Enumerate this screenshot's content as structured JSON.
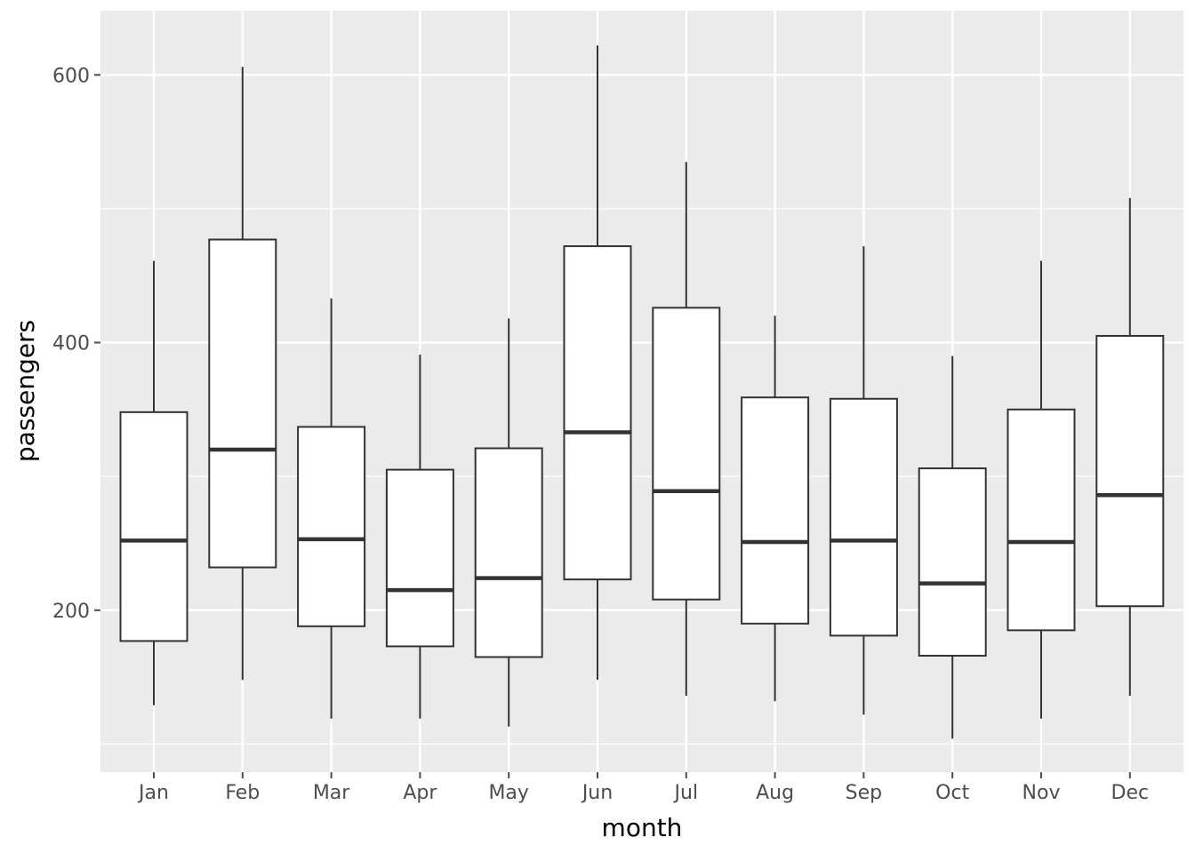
{
  "chart_data": {
    "type": "boxplot",
    "xlabel": "month",
    "ylabel": "passengers",
    "categories": [
      "Jan",
      "Feb",
      "Mar",
      "Apr",
      "May",
      "Jun",
      "Jul",
      "Aug",
      "Sep",
      "Oct",
      "Nov",
      "Dec"
    ],
    "boxes": [
      {
        "category": "Jan",
        "low": 129,
        "q1": 177,
        "median": 252,
        "q3": 348,
        "high": 461
      },
      {
        "category": "Feb",
        "low": 148,
        "q1": 232,
        "median": 320,
        "q3": 477,
        "high": 606
      },
      {
        "category": "Mar",
        "low": 119,
        "q1": 188,
        "median": 253,
        "q3": 337,
        "high": 433
      },
      {
        "category": "Apr",
        "low": 119,
        "q1": 173,
        "median": 215,
        "q3": 305,
        "high": 391
      },
      {
        "category": "May",
        "low": 113,
        "q1": 165,
        "median": 224,
        "q3": 321,
        "high": 418
      },
      {
        "category": "Jun",
        "low": 148,
        "q1": 223,
        "median": 333,
        "q3": 472,
        "high": 622
      },
      {
        "category": "Jul",
        "low": 136,
        "q1": 208,
        "median": 289,
        "q3": 426,
        "high": 535
      },
      {
        "category": "Aug",
        "low": 132,
        "q1": 190,
        "median": 251,
        "q3": 359,
        "high": 420
      },
      {
        "category": "Sep",
        "low": 122,
        "q1": 181,
        "median": 252,
        "q3": 358,
        "high": 472
      },
      {
        "category": "Oct",
        "low": 104,
        "q1": 166,
        "median": 220,
        "q3": 306,
        "high": 390
      },
      {
        "category": "Nov",
        "low": 119,
        "q1": 185,
        "median": 251,
        "q3": 350,
        "high": 461
      },
      {
        "category": "Dec",
        "low": 136,
        "q1": 203,
        "median": 286,
        "q3": 405,
        "high": 508
      }
    ],
    "y_ticks": [
      200,
      400,
      600
    ],
    "y_minor_ticks": [
      100,
      300,
      500
    ],
    "ylim": [
      79,
      648
    ],
    "grid": true,
    "theme": {
      "panel_background": "#ebebeb",
      "grid_color": "#ffffff",
      "box_fill": "#ffffff",
      "box_stroke": "#333333",
      "tick_color": "#4d4d4d"
    }
  }
}
